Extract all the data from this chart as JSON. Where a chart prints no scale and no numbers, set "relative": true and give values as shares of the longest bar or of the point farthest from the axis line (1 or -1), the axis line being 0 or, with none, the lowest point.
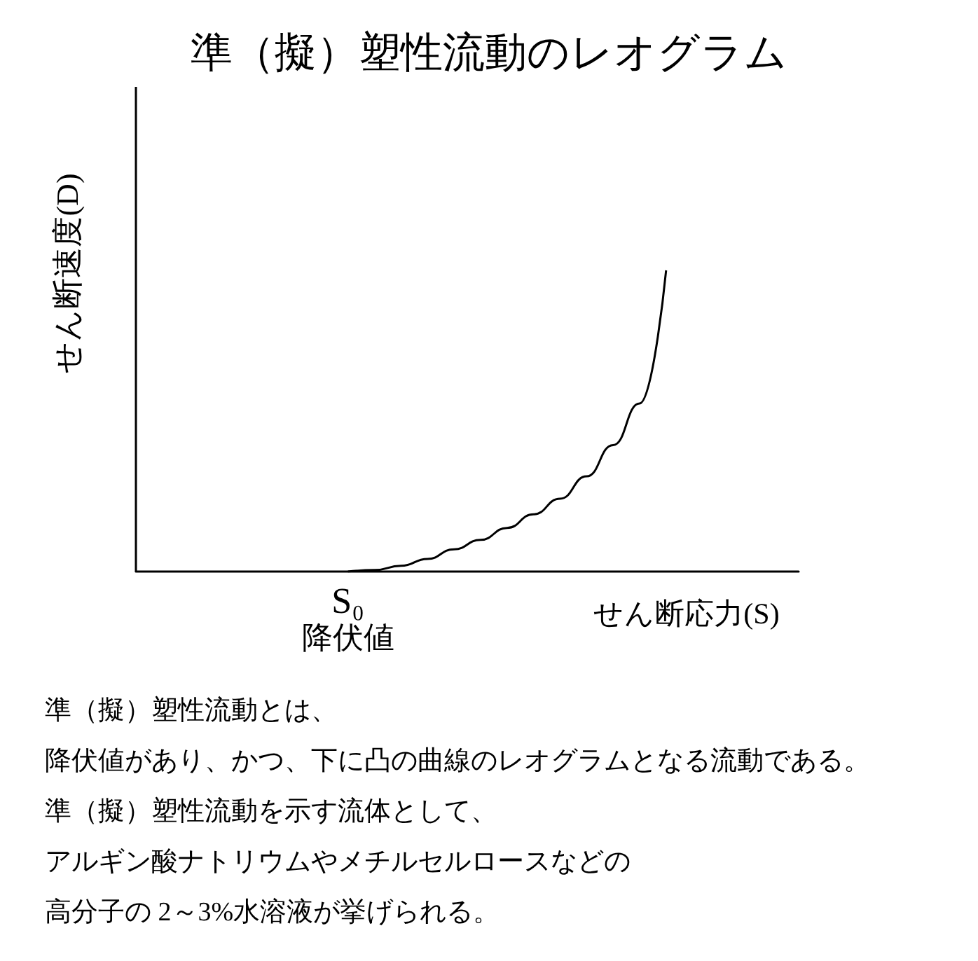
{
  "chart_data": {
    "type": "line",
    "title": "準（擬）塑性流動のレオグラム",
    "xlabel": "せん断応力(S)",
    "ylabel": "せん断速度(D)",
    "relative": true,
    "marker": "none",
    "line_style": "solid",
    "grid": false,
    "categories": [
      null,
      null,
      null,
      null,
      null,
      null,
      null,
      null,
      null,
      null,
      null,
      null,
      null,
      null,
      null,
      null,
      null,
      null,
      null,
      null,
      null,
      null,
      null,
      null,
      null,
      null
    ],
    "series": [
      {
        "color": "#000000",
        "values": [
          null,
          null,
          null,
          null,
          null,
          null,
          null,
          null,
          0,
          0.005,
          0.019,
          0.042,
          0.074,
          0.105,
          0.145,
          0.19,
          0.242,
          0.316,
          0.42,
          0.558,
          1,
          null,
          null,
          null,
          null,
          null
        ]
      }
    ],
    "annotations": [
      {
        "text": "S₀",
        "y": 0
      },
      {
        "text": "降伏値",
        "y": 0
      },
      "準（擬）塑性流動とは、",
      "降伏値があり、かつ、下に凸の曲線のレオグラムとなる流動である。",
      "準（擬）塑性流動を示す流体として、",
      "アルギン酸ナトリウムやメチルセルロースなどの",
      "高分子の 2～3%水溶液が挙げられる。"
    ]
  }
}
